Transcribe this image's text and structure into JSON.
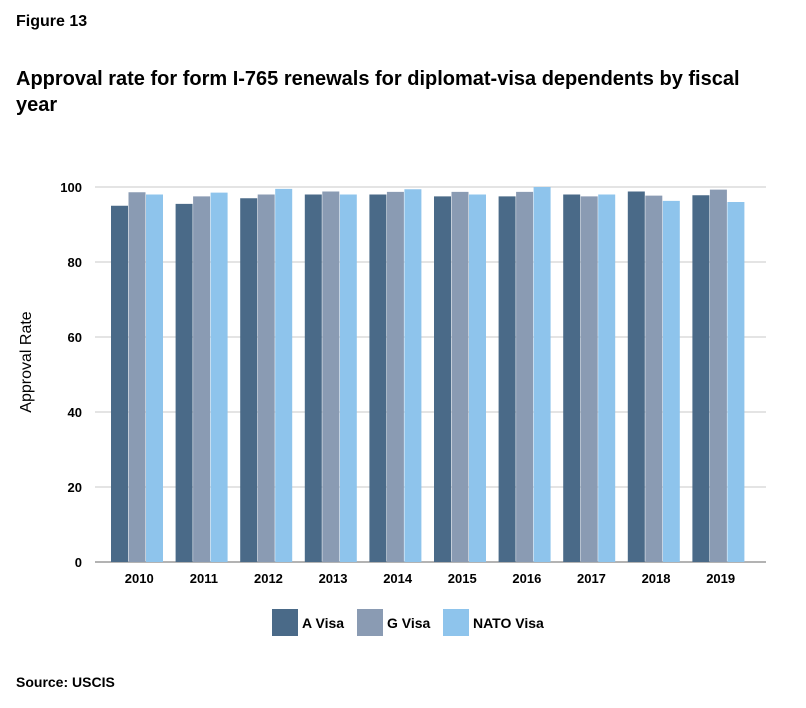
{
  "figure_label": "Figure 13",
  "title": "Approval rate for form I-765 renewals for diplomat-visa dependents by fiscal year",
  "source": "Source: USCIS",
  "chart_data": {
    "type": "bar",
    "ylabel": "Approval Rate",
    "xlabel": "",
    "ylim": [
      0,
      100
    ],
    "yticks": [
      0,
      20,
      40,
      60,
      80,
      100
    ],
    "grid": true,
    "legend_position": "bottom",
    "categories": [
      "2010",
      "2011",
      "2012",
      "2013",
      "2014",
      "2015",
      "2016",
      "2017",
      "2018",
      "2019"
    ],
    "series": [
      {
        "name": "A Visa",
        "color": "#4a6a88",
        "values": [
          95.0,
          95.5,
          97.0,
          98.0,
          98.0,
          97.5,
          97.5,
          98.0,
          98.8,
          97.8
        ]
      },
      {
        "name": "G Visa",
        "color": "#8a9bb3",
        "values": [
          98.6,
          97.5,
          98.0,
          98.8,
          98.7,
          98.7,
          98.7,
          97.5,
          97.7,
          99.3
        ]
      },
      {
        "name": "NATO Visa",
        "color": "#8ec4ec",
        "values": [
          98.0,
          98.5,
          99.5,
          98.0,
          99.4,
          98.0,
          100.0,
          98.0,
          96.3,
          96.0
        ]
      }
    ]
  }
}
